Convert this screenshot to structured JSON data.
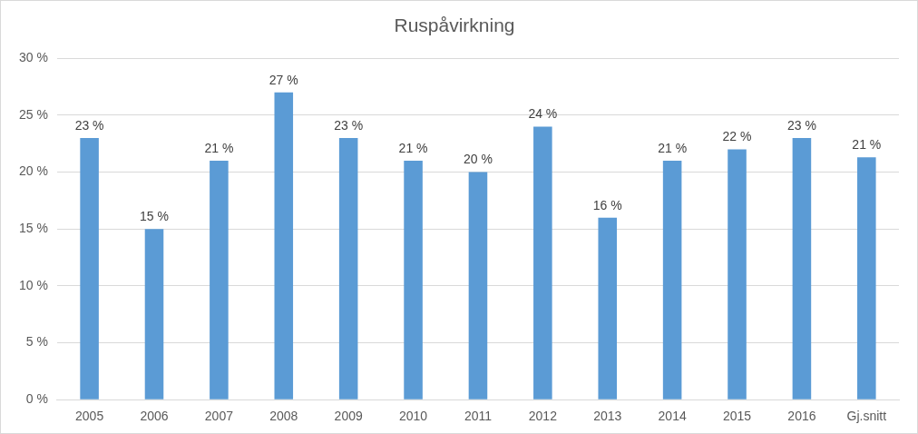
{
  "chart_data": {
    "type": "bar",
    "title": "Ruspåvirkning",
    "categories": [
      "2005",
      "2006",
      "2007",
      "2008",
      "2009",
      "2010",
      "2011",
      "2012",
      "2013",
      "2014",
      "2015",
      "2016",
      "Gj.snitt"
    ],
    "values": [
      23,
      15,
      21,
      27,
      23,
      21,
      20,
      24,
      16,
      21,
      22,
      23,
      21.3
    ],
    "value_labels": [
      "23 %",
      "15 %",
      "21 %",
      "27 %",
      "23 %",
      "21 %",
      "20 %",
      "24 %",
      "16 %",
      "21 %",
      "22 %",
      "23 %",
      "21 %"
    ],
    "color": "#5b9bd5",
    "ylim": [
      0,
      30
    ],
    "yticks": [
      {
        "value": 0,
        "label": "0 %"
      },
      {
        "value": 5,
        "label": "5 %"
      },
      {
        "value": 10,
        "label": "10 %"
      },
      {
        "value": 15,
        "label": "15 %"
      },
      {
        "value": 20,
        "label": "20 %"
      },
      {
        "value": 25,
        "label": "25 %"
      },
      {
        "value": 30,
        "label": "30 %"
      }
    ],
    "grid": true,
    "data_labels": true
  }
}
